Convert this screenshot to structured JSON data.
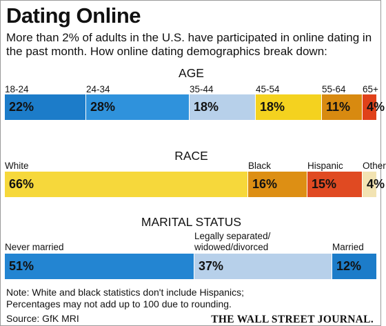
{
  "title": "Dating Online",
  "subtitle": "More than 2% of adults in the U.S. have participated in online dating in the past month. How online dating demographics break down:",
  "note_lines": [
    "Note: White and black statistics don't include Hispanics;",
    "Percentages may not add up to 100 due to rounding."
  ],
  "source": "Source: GfK MRI",
  "publisher": "THE WALL STREET JOURNAL.",
  "chart_data": [
    {
      "type": "bar",
      "orientation": "stacked-horizontal",
      "title": "AGE",
      "categories": [
        "18-24",
        "24-34",
        "35-44",
        "45-54",
        "55-64",
        "65+"
      ],
      "values": [
        22,
        28,
        18,
        18,
        11,
        4
      ],
      "value_labels": [
        "22%",
        "28%",
        "18%",
        "18%",
        "11%",
        "4%"
      ],
      "colors": [
        "#1c7cc9",
        "#2f92dc",
        "#b7d0ea",
        "#f4d21f",
        "#d88a10",
        "#e0411a"
      ]
    },
    {
      "type": "bar",
      "orientation": "stacked-horizontal",
      "title": "RACE",
      "categories": [
        "White",
        "Black",
        "Hispanic",
        "Other"
      ],
      "values": [
        66,
        16,
        15,
        4
      ],
      "value_labels": [
        "66%",
        "16%",
        "15%",
        "4%"
      ],
      "colors": [
        "#f6d83b",
        "#dd8f14",
        "#e04a22",
        "#f2e3b2"
      ]
    },
    {
      "type": "bar",
      "orientation": "stacked-horizontal",
      "title": "MARITAL STATUS",
      "categories": [
        "Never married",
        "Legally separated/ widowed/divorced",
        "Married"
      ],
      "category_lines": [
        [
          "Never married"
        ],
        [
          "Legally separated/",
          "widowed/divorced"
        ],
        [
          "Married"
        ]
      ],
      "values": [
        51,
        37,
        12
      ],
      "value_labels": [
        "51%",
        "37%",
        "12%"
      ],
      "colors": [
        "#2385d2",
        "#b7d0ea",
        "#1c7cc9"
      ]
    }
  ]
}
